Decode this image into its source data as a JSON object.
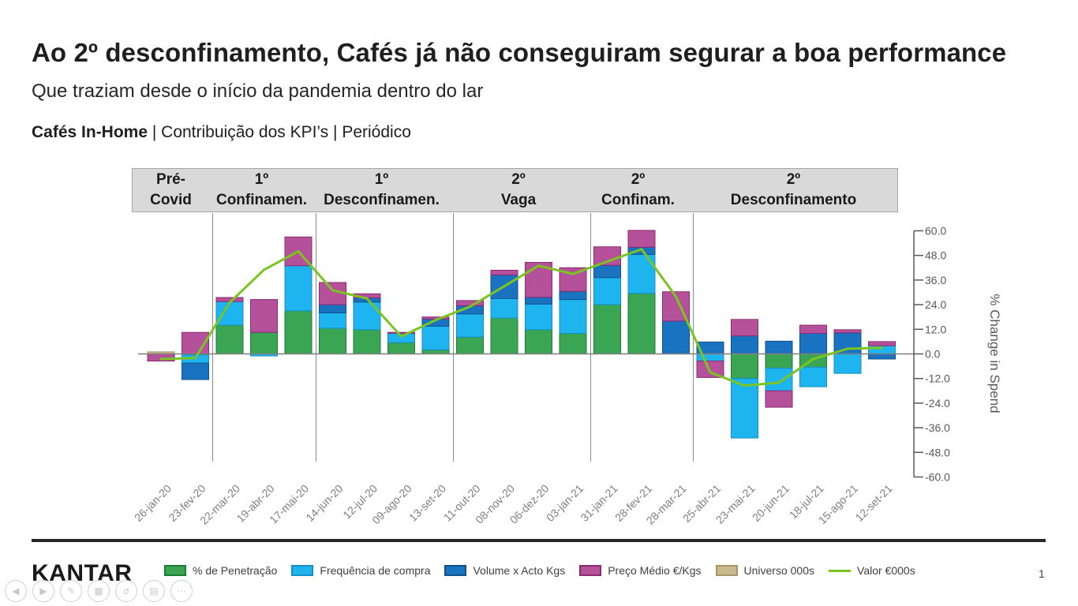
{
  "slide": {
    "title": "Ao 2º desconfinamento, Cafés já não conseguiram segurar a boa performance",
    "subtitle": "Que traziam desde o início da pandemia dentro do lar",
    "section_bold": "Cafés In-Home",
    "section_rest": " | Contribuição dos KPI’s | Periódico",
    "page_number": "1",
    "logo_text": "KANTAR"
  },
  "periods": [
    {
      "line1": "Pré-",
      "line2": "Covid"
    },
    {
      "line1": "1º",
      "line2": "Confinamen."
    },
    {
      "line1": "1º",
      "line2": "Desconfinamen."
    },
    {
      "line1": "2º",
      "line2": "Vaga"
    },
    {
      "line1": "2º",
      "line2": "Confinam."
    },
    {
      "line1": "2º",
      "line2": "Desconfinamento"
    }
  ],
  "legend": [
    {
      "label": "% de Penetração",
      "color": "#3aa654",
      "type": "box"
    },
    {
      "label": "Frequência de compra",
      "color": "#1eb4f0",
      "type": "box"
    },
    {
      "label": "Volume x Acto Kgs",
      "color": "#1a73c0",
      "type": "box"
    },
    {
      "label": "Preço Médio €/Kgs",
      "color": "#b5519a",
      "type": "box"
    },
    {
      "label": "Universo 000s",
      "color": "#c9b98f",
      "type": "box"
    },
    {
      "label": "Valor €000s",
      "color": "#7ac520",
      "type": "line"
    }
  ],
  "chart_data": {
    "type": "bar",
    "stacked": true,
    "ylabel": "% Change in Spend",
    "ylim": [
      -60,
      60
    ],
    "yticks": [
      "60.0",
      "48.0",
      "36.0",
      "24.0",
      "12.0",
      "0.0",
      "-12.0",
      "-24.0",
      "-36.0",
      "-48.0",
      "-60.0"
    ],
    "categories": [
      "26-jan-20",
      "23-fev-20",
      "22-mar-20",
      "19-abr-20",
      "17-mai-20",
      "14-jun-20",
      "12-jul-20",
      "09-ago-20",
      "13-set-20",
      "11-out-20",
      "08-nov-20",
      "06-dez-20",
      "03-jan-21",
      "31-jan-21",
      "28-fev-21",
      "28-mar-21",
      "25-abr-21",
      "23-mai-21",
      "20-jun-21",
      "18-jul-21",
      "15-ago-21",
      "12-set-21"
    ],
    "series": [
      {
        "name": "% de Penetração",
        "values": [
          0,
          -0.5,
          14,
          10.5,
          21,
          12.5,
          11.8,
          5.5,
          2,
          8.2,
          17.5,
          11.8,
          10,
          24,
          29.5,
          0,
          0,
          -12,
          -7,
          -6.5,
          0,
          0
        ]
      },
      {
        "name": "Frequência de compra",
        "values": [
          0,
          -4,
          11.5,
          -1,
          22,
          7.5,
          13.5,
          4.5,
          11.5,
          11.3,
          9.5,
          12.5,
          16.5,
          13.2,
          19,
          0,
          -3.5,
          -29,
          -11,
          -9.5,
          -9.5,
          4
        ]
      },
      {
        "name": "Volume x Acto Kgs",
        "values": [
          0,
          -8,
          0,
          0,
          0,
          4,
          2,
          0,
          3.5,
          4,
          11.5,
          3.3,
          4,
          6,
          3.5,
          16,
          5.8,
          8.8,
          6.2,
          10,
          10.3,
          -2.5
        ]
      },
      {
        "name": "Preço Médio €/Kgs",
        "values": [
          -3.5,
          10.5,
          2,
          16,
          14,
          10.8,
          2,
          0.5,
          1,
          2.5,
          2.3,
          17,
          11.5,
          9,
          8.2,
          14.3,
          -8,
          8,
          -8,
          4,
          1.5,
          2
        ]
      },
      {
        "name": "Universo 000s",
        "values": [
          1,
          0,
          0,
          0,
          0,
          0,
          0,
          0,
          0,
          0,
          0,
          0,
          0,
          0,
          0,
          0,
          0,
          0,
          0,
          0,
          0,
          0
        ]
      },
      {
        "name": "Valor €000s",
        "type": "line",
        "values": [
          -2.5,
          -2,
          25,
          41,
          50,
          31,
          27,
          8.5,
          16.5,
          23,
          33,
          43,
          39,
          45,
          51,
          28,
          -9,
          -15.5,
          -14,
          -2.5,
          2.5,
          3
        ]
      }
    ],
    "period_breaks_after": [
      1,
      4,
      8,
      12,
      15
    ]
  }
}
